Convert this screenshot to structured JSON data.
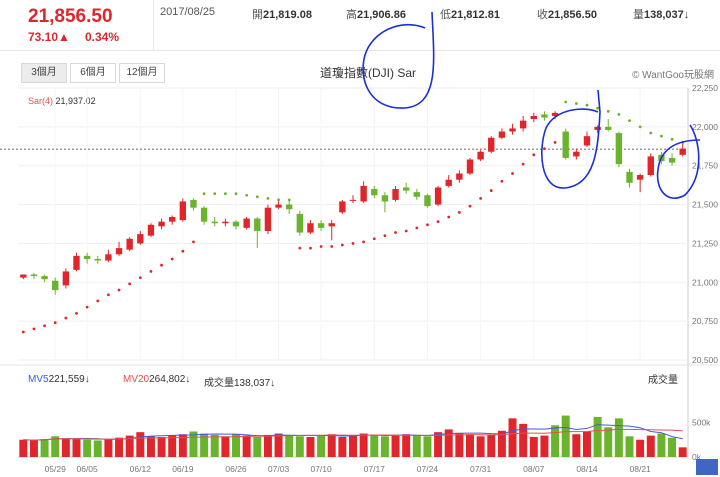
{
  "header": {
    "last_price": "21,856.50",
    "change": "73.10▲",
    "change_pct": "0.34%",
    "date": "2017/08/25",
    "open_label": "開",
    "open": "21,819.08",
    "high_label": "高",
    "high": "21,906.86",
    "low_label": "低",
    "low": "21,812.81",
    "close_label": "收",
    "close": "21,856.50",
    "volume_label": "量",
    "volume": "138,037↓"
  },
  "tabs": [
    "3個月",
    "6個月",
    "12個月"
  ],
  "chart_title": "道瓊指數(DJI) Sar",
  "brand": "© WantGoo玩股網",
  "sar_label": "Sar(4)",
  "sar_value": "21,937.02",
  "volume_panel": {
    "mv5_label": "MV5",
    "mv5": "221,559↓",
    "mv20_label": "MV20",
    "mv20": "264,802↓",
    "vol_label": "成交量",
    "vol": "138,037↓",
    "title": "成交量"
  },
  "colors": {
    "up": "#e0262a",
    "down": "#6ab42d",
    "mv5": "#3a5fd8",
    "mv20": "#e05050"
  },
  "annotations": "blue hand-drawn circles",
  "chart_data": {
    "type": "candlestick",
    "price_axis": {
      "min": 20500,
      "max": 22250,
      "ticks": [
        "22,250",
        "22,000",
        "21,750",
        "21,500",
        "21,250",
        "21,000",
        "20,750",
        "20,500"
      ]
    },
    "volume_axis": {
      "max": 1000000,
      "ticks": [
        "500k",
        "0k"
      ]
    },
    "x_ticks": [
      {
        "i": 3,
        "label": "05/29"
      },
      {
        "i": 6,
        "label": "06/05"
      },
      {
        "i": 11,
        "label": "06/12"
      },
      {
        "i": 15,
        "label": "06/19"
      },
      {
        "i": 20,
        "label": "06/26"
      },
      {
        "i": 24,
        "label": "07/03"
      },
      {
        "i": 28,
        "label": "07/10"
      },
      {
        "i": 33,
        "label": "07/17"
      },
      {
        "i": 38,
        "label": "07/24"
      },
      {
        "i": 43,
        "label": "07/31"
      },
      {
        "i": 48,
        "label": "08/07"
      },
      {
        "i": 53,
        "label": "08/14"
      },
      {
        "i": 58,
        "label": "08/21"
      }
    ],
    "candles": [
      {
        "o": 21030,
        "h": 21050,
        "c": 21050,
        "l": 21020
      },
      {
        "o": 21050,
        "h": 21060,
        "c": 21040,
        "l": 21020
      },
      {
        "o": 21040,
        "h": 21050,
        "c": 21020,
        "l": 21000
      },
      {
        "o": 21010,
        "h": 21030,
        "c": 20950,
        "l": 20920
      },
      {
        "o": 20980,
        "h": 21090,
        "c": 21070,
        "l": 20960
      },
      {
        "o": 21080,
        "h": 21190,
        "c": 21170,
        "l": 21070
      },
      {
        "o": 21170,
        "h": 21190,
        "c": 21150,
        "l": 21120
      },
      {
        "o": 21150,
        "h": 21170,
        "c": 21140,
        "l": 21120
      },
      {
        "o": 21140,
        "h": 21210,
        "c": 21180,
        "l": 21130
      },
      {
        "o": 21180,
        "h": 21260,
        "c": 21220,
        "l": 21170
      },
      {
        "o": 21210,
        "h": 21290,
        "c": 21280,
        "l": 21200
      },
      {
        "o": 21250,
        "h": 21330,
        "c": 21310,
        "l": 21240
      },
      {
        "o": 21300,
        "h": 21380,
        "c": 21370,
        "l": 21290
      },
      {
        "o": 21360,
        "h": 21410,
        "c": 21390,
        "l": 21340
      },
      {
        "o": 21390,
        "h": 21430,
        "c": 21420,
        "l": 21370
      },
      {
        "o": 21400,
        "h": 21540,
        "c": 21520,
        "l": 21390
      },
      {
        "o": 21530,
        "h": 21540,
        "c": 21480,
        "l": 21460
      },
      {
        "o": 21480,
        "h": 21490,
        "c": 21390,
        "l": 21370
      },
      {
        "o": 21390,
        "h": 21420,
        "c": 21380,
        "l": 21360
      },
      {
        "o": 21380,
        "h": 21410,
        "c": 21390,
        "l": 21360
      },
      {
        "o": 21390,
        "h": 21400,
        "c": 21360,
        "l": 21340
      },
      {
        "o": 21350,
        "h": 21420,
        "c": 21410,
        "l": 21340
      },
      {
        "o": 21410,
        "h": 21420,
        "c": 21330,
        "l": 21220
      },
      {
        "o": 21330,
        "h": 21500,
        "c": 21480,
        "l": 21310
      },
      {
        "o": 21480,
        "h": 21540,
        "c": 21500,
        "l": 21470
      },
      {
        "o": 21500,
        "h": 21530,
        "c": 21470,
        "l": 21440
      },
      {
        "o": 21440,
        "h": 21460,
        "c": 21320,
        "l": 21300
      },
      {
        "o": 21320,
        "h": 21400,
        "c": 21380,
        "l": 21310
      },
      {
        "o": 21380,
        "h": 21400,
        "c": 21350,
        "l": 21330
      },
      {
        "o": 21360,
        "h": 21400,
        "c": 21380,
        "l": 21270
      },
      {
        "o": 21450,
        "h": 21530,
        "c": 21520,
        "l": 21440
      },
      {
        "o": 21530,
        "h": 21560,
        "c": 21530,
        "l": 21510
      },
      {
        "o": 21520,
        "h": 21650,
        "c": 21620,
        "l": 21510
      },
      {
        "o": 21600,
        "h": 21620,
        "c": 21560,
        "l": 21540
      },
      {
        "o": 21560,
        "h": 21580,
        "c": 21520,
        "l": 21450
      },
      {
        "o": 21530,
        "h": 21620,
        "c": 21600,
        "l": 21520
      },
      {
        "o": 21610,
        "h": 21640,
        "c": 21590,
        "l": 21570
      },
      {
        "o": 21580,
        "h": 21600,
        "c": 21550,
        "l": 21530
      },
      {
        "o": 21560,
        "h": 21570,
        "c": 21490,
        "l": 21480
      },
      {
        "o": 21500,
        "h": 21620,
        "c": 21610,
        "l": 21490
      },
      {
        "o": 21620,
        "h": 21690,
        "c": 21660,
        "l": 21610
      },
      {
        "o": 21660,
        "h": 21720,
        "c": 21700,
        "l": 21640
      },
      {
        "o": 21700,
        "h": 21800,
        "c": 21790,
        "l": 21690
      },
      {
        "o": 21790,
        "h": 21850,
        "c": 21840,
        "l": 21780
      },
      {
        "o": 21840,
        "h": 21940,
        "c": 21930,
        "l": 21830
      },
      {
        "o": 21930,
        "h": 21990,
        "c": 21970,
        "l": 21920
      },
      {
        "o": 21970,
        "h": 22020,
        "c": 21990,
        "l": 21950
      },
      {
        "o": 21990,
        "h": 22070,
        "c": 22040,
        "l": 21970
      },
      {
        "o": 22050,
        "h": 22090,
        "c": 22070,
        "l": 22030
      },
      {
        "o": 22080,
        "h": 22100,
        "c": 22060,
        "l": 22040
      },
      {
        "o": 22070,
        "h": 22100,
        "c": 22090,
        "l": 22050
      },
      {
        "o": 21970,
        "h": 21990,
        "c": 21800,
        "l": 21790
      },
      {
        "o": 21810,
        "h": 21860,
        "c": 21840,
        "l": 21790
      },
      {
        "o": 21880,
        "h": 21970,
        "c": 21940,
        "l": 21870
      },
      {
        "o": 21980,
        "h": 22010,
        "c": 22000,
        "l": 21960
      },
      {
        "o": 22000,
        "h": 22050,
        "c": 21980,
        "l": 21970
      },
      {
        "o": 21960,
        "h": 21970,
        "c": 21760,
        "l": 21740
      },
      {
        "o": 21710,
        "h": 21730,
        "c": 21640,
        "l": 21610
      },
      {
        "o": 21660,
        "h": 21700,
        "c": 21690,
        "l": 21580
      },
      {
        "o": 21690,
        "h": 21830,
        "c": 21810,
        "l": 21680
      },
      {
        "o": 21820,
        "h": 21840,
        "c": 21780,
        "l": 21760
      },
      {
        "o": 21800,
        "h": 21830,
        "c": 21770,
        "l": 21750
      },
      {
        "o": 21820,
        "h": 21910,
        "c": 21860,
        "l": 21810
      }
    ],
    "sar": [
      [
        0,
        20680
      ],
      [
        1,
        20700
      ],
      [
        2,
        20720
      ],
      [
        3,
        20740
      ],
      [
        4,
        20770
      ],
      [
        5,
        20800
      ],
      [
        6,
        20840
      ],
      [
        7,
        20880
      ],
      [
        8,
        20920
      ],
      [
        9,
        20950
      ],
      [
        10,
        20990
      ],
      [
        11,
        21030
      ],
      [
        12,
        21070
      ],
      [
        13,
        21110
      ],
      [
        14,
        21150
      ],
      [
        15,
        21200
      ],
      [
        16,
        21260
      ],
      [
        17,
        21570
      ],
      [
        18,
        21570
      ],
      [
        19,
        21570
      ],
      [
        20,
        21570
      ],
      [
        21,
        21560
      ],
      [
        22,
        21550
      ],
      [
        23,
        21540
      ],
      [
        24,
        21530
      ],
      [
        25,
        21530
      ],
      [
        26,
        21220
      ],
      [
        27,
        21220
      ],
      [
        28,
        21230
      ],
      [
        29,
        21230
      ],
      [
        30,
        21240
      ],
      [
        31,
        21250
      ],
      [
        32,
        21260
      ],
      [
        33,
        21280
      ],
      [
        34,
        21300
      ],
      [
        35,
        21320
      ],
      [
        36,
        21330
      ],
      [
        37,
        21350
      ],
      [
        38,
        21370
      ],
      [
        39,
        21390
      ],
      [
        40,
        21420
      ],
      [
        41,
        21450
      ],
      [
        42,
        21490
      ],
      [
        43,
        21540
      ],
      [
        44,
        21590
      ],
      [
        45,
        21650
      ],
      [
        46,
        21700
      ],
      [
        47,
        21760
      ],
      [
        48,
        21820
      ],
      [
        49,
        21860
      ],
      [
        50,
        21900
      ],
      [
        51,
        22160
      ],
      [
        52,
        22150
      ],
      [
        53,
        22140
      ],
      [
        54,
        22120
      ],
      [
        55,
        22100
      ],
      [
        56,
        22080
      ],
      [
        57,
        22040
      ],
      [
        58,
        22000
      ],
      [
        59,
        21960
      ],
      [
        60,
        21940
      ],
      [
        61,
        21920
      ],
      [
        62,
        21900
      ]
    ],
    "volume": [
      250,
      240,
      260,
      300,
      270,
      260,
      250,
      240,
      260,
      280,
      310,
      360,
      300,
      290,
      310,
      330,
      370,
      340,
      320,
      300,
      330,
      310,
      290,
      320,
      340,
      320,
      300,
      290,
      310,
      330,
      290,
      310,
      340,
      320,
      300,
      310,
      330,
      320,
      300,
      360,
      400,
      340,
      330,
      300,
      320,
      380,
      560,
      480,
      290,
      310,
      460,
      600,
      330,
      370,
      580,
      430,
      560,
      300,
      250,
      310,
      340,
      280,
      140
    ],
    "volume_up": [
      true,
      true,
      false,
      false,
      true,
      true,
      false,
      false,
      true,
      true,
      true,
      true,
      true,
      true,
      true,
      true,
      false,
      false,
      false,
      true,
      false,
      true,
      false,
      true,
      true,
      false,
      false,
      true,
      false,
      true,
      true,
      true,
      true,
      false,
      false,
      true,
      true,
      false,
      false,
      true,
      true,
      true,
      true,
      true,
      true,
      true,
      true,
      true,
      true,
      true,
      false,
      false,
      true,
      true,
      false,
      false,
      false,
      false,
      true,
      true,
      false,
      false,
      true
    ]
  }
}
